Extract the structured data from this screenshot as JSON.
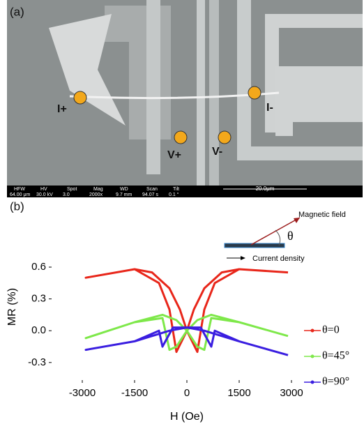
{
  "panel_a": {
    "label": "(a)",
    "contacts": [
      "I+",
      "I-",
      "V+",
      "V-"
    ],
    "info_bar": {
      "headers": [
        "HFW",
        "HV",
        "Spot",
        "Mag",
        "WD",
        "Scan",
        "Tilt"
      ],
      "values": [
        "64.00 μm",
        "30.0 kV",
        "3.0",
        "2000x",
        "9.7 mm",
        "94.07 s",
        "0.1 °"
      ]
    },
    "scale_bar": "20.0μm"
  },
  "chart_data": {
    "type": "line",
    "panel_label": "(b)",
    "x_label": "H (Oe)",
    "y_label": "MR (%)",
    "annotations": [
      "Magnetic field",
      "θ",
      "Current density"
    ],
    "xlim": [
      -3500,
      3500
    ],
    "ylim": [
      -0.4,
      0.85
    ],
    "xticks": [
      -3000,
      -1500,
      0,
      1500,
      3000
    ],
    "yticks": [
      -0.3,
      {
        "value": 0,
        "label": "0.0"
      },
      0.3,
      0.6
    ],
    "legend": "right",
    "series": [
      {
        "name": "θ=0",
        "color": "#e8261a",
        "x": [
          2900,
          1500,
          1000,
          500,
          200,
          0,
          -300,
          -500,
          -800,
          -1500,
          -2900,
          -2900,
          -1500,
          -1000,
          -500,
          -200,
          0,
          300,
          500,
          800,
          1500,
          2900
        ],
        "values": [
          0.55,
          0.58,
          0.55,
          0.4,
          0.2,
          0.0,
          -0.2,
          0.2,
          0.45,
          0.58,
          0.5,
          0.5,
          0.58,
          0.55,
          0.4,
          0.2,
          0.0,
          -0.2,
          0.2,
          0.45,
          0.58,
          0.55
        ]
      },
      {
        "name": "θ=45°",
        "color": "#7ee84a",
        "x": [
          2900,
          1500,
          700,
          300,
          0,
          -300,
          -500,
          -700,
          -1500,
          -2900,
          -2900,
          -1500,
          -700,
          -300,
          0,
          300,
          500,
          700,
          1500,
          2900
        ],
        "values": [
          -0.05,
          0.08,
          0.15,
          0.1,
          0.0,
          -0.15,
          -0.18,
          0.12,
          0.08,
          -0.07,
          -0.07,
          0.08,
          0.15,
          0.1,
          0.0,
          -0.15,
          -0.18,
          0.12,
          0.08,
          -0.05
        ]
      },
      {
        "name": "θ=90°",
        "color": "#3a1ee0",
        "x": [
          2900,
          1500,
          500,
          0,
          -400,
          -700,
          -800,
          -1500,
          -2900,
          -2900,
          -1500,
          -500,
          0,
          400,
          700,
          800,
          1500,
          2900
        ],
        "values": [
          -0.23,
          -0.1,
          0.0,
          0.03,
          0.03,
          -0.15,
          0.0,
          -0.1,
          -0.18,
          -0.18,
          -0.1,
          0.0,
          0.03,
          0.03,
          -0.15,
          0.0,
          -0.1,
          -0.23
        ]
      }
    ]
  }
}
